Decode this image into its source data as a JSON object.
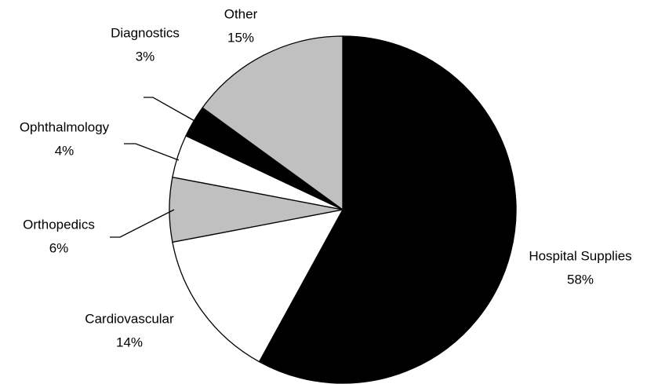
{
  "chart_data": {
    "type": "pie",
    "categories": [
      "Hospital Supplies",
      "Cardiovascular",
      "Orthopedics",
      "Ophthalmology",
      "Diagnostics",
      "Other"
    ],
    "values": [
      58,
      14,
      6,
      4,
      3,
      15
    ],
    "value_labels": [
      "58%",
      "14%",
      "6%",
      "4%",
      "3%",
      "15%"
    ],
    "colors": [
      "#000000",
      "#ffffff",
      "#c0c0c0",
      "#ffffff",
      "#000000",
      "#c0c0c0"
    ]
  }
}
